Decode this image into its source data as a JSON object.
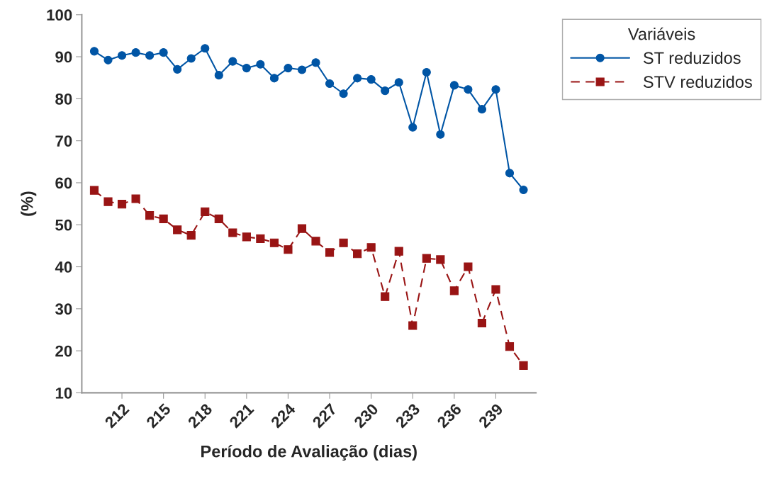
{
  "chart_data": {
    "type": "line",
    "xlabel": "Período de Avaliação (dias)",
    "ylabel": "(%)",
    "legend_title": "Variáveis",
    "x": [
      210,
      211,
      212,
      213,
      214,
      215,
      216,
      217,
      218,
      219,
      220,
      221,
      222,
      223,
      224,
      225,
      226,
      227,
      228,
      229,
      230,
      231,
      232,
      233,
      234,
      235,
      236,
      237,
      238,
      239,
      240,
      241
    ],
    "series": [
      {
        "name": "ST reduzidos",
        "color": "#0055a5",
        "marker": "circle",
        "line_style": "solid",
        "values": [
          91.3,
          89.2,
          90.3,
          91.0,
          90.3,
          91.0,
          87.0,
          89.6,
          92.0,
          85.6,
          88.9,
          87.3,
          88.2,
          84.9,
          87.3,
          86.9,
          88.6,
          83.6,
          81.2,
          84.9,
          84.6,
          81.9,
          83.9,
          73.2,
          86.3,
          71.5,
          83.2,
          82.2,
          77.5,
          82.2,
          62.3,
          58.3
        ]
      },
      {
        "name": "STV reduzidos",
        "color": "#991414",
        "marker": "square",
        "line_style": "dashed",
        "values": [
          58.2,
          55.5,
          54.9,
          56.2,
          52.2,
          51.4,
          48.8,
          47.5,
          53.1,
          51.4,
          48.1,
          47.1,
          46.7,
          45.7,
          44.1,
          49.1,
          46.1,
          43.4,
          45.7,
          43.1,
          44.6,
          32.9,
          43.7,
          26.0,
          42.0,
          41.7,
          34.3,
          40.0,
          26.6,
          34.6,
          21.0,
          16.5
        ]
      }
    ],
    "xlim": [
      209.1,
      241.9
    ],
    "xticks": [
      212,
      215,
      218,
      221,
      224,
      227,
      230,
      233,
      236,
      239
    ],
    "ylim": [
      10,
      100
    ],
    "yticks": [
      10,
      20,
      30,
      40,
      50,
      60,
      70,
      80,
      90,
      100
    ],
    "grid": false,
    "legend": "top right"
  }
}
